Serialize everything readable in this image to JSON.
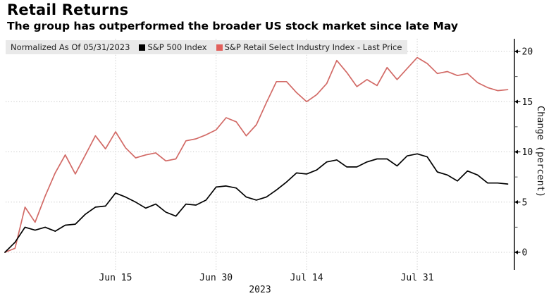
{
  "header": {
    "title": "Retail Returns",
    "subtitle": "The group has outperformed the broader US stock market since late May"
  },
  "legend": {
    "normalized_label": "Normalized As Of 05/31/2023",
    "items": [
      {
        "label": "S&P 500 Index",
        "color": "#000000"
      },
      {
        "label": "S&P Retail Select Industry Index - Last Price",
        "color": "#e2605c"
      }
    ]
  },
  "chart_data": {
    "type": "line",
    "title": "Retail Returns",
    "subtitle": "The group has outperformed the broader US stock market since late May",
    "ylabel": "Change (percent)",
    "yticks": [
      0,
      5,
      10,
      15,
      20
    ],
    "minor_yticks": [
      2.5,
      7.5,
      12.5,
      17.5
    ],
    "ylim": [
      -1.8,
      21.3
    ],
    "grid": "dotted",
    "legend_position": "top-left",
    "axis_side": "right",
    "x_axis_year_label": "2023",
    "x_tick_labels": [
      "Jun 15",
      "Jun 30",
      "Jul 14",
      "Jul 31"
    ],
    "x_tick_indices": [
      11,
      21,
      30,
      41
    ],
    "dates": [
      "05/31",
      "06/01",
      "06/02",
      "06/05",
      "06/06",
      "06/07",
      "06/08",
      "06/09",
      "06/12",
      "06/13",
      "06/14",
      "06/15",
      "06/16",
      "06/20",
      "06/21",
      "06/22",
      "06/23",
      "06/26",
      "06/27",
      "06/28",
      "06/29",
      "06/30",
      "07/03",
      "07/05",
      "07/06",
      "07/07",
      "07/10",
      "07/11",
      "07/12",
      "07/13",
      "07/14",
      "07/17",
      "07/18",
      "07/19",
      "07/20",
      "07/21",
      "07/24",
      "07/25",
      "07/26",
      "07/27",
      "07/28",
      "07/31",
      "08/01",
      "08/02",
      "08/03",
      "08/04",
      "08/07",
      "08/08",
      "08/09",
      "08/10",
      "08/11"
    ],
    "series": [
      {
        "name": "S&P 500 Index",
        "color": "#000000",
        "values": [
          0,
          1.0,
          2.5,
          2.2,
          2.5,
          2.1,
          2.7,
          2.8,
          3.8,
          4.5,
          4.6,
          5.9,
          5.5,
          5.0,
          4.4,
          4.8,
          4.0,
          3.6,
          4.8,
          4.7,
          5.2,
          6.5,
          6.6,
          6.4,
          5.5,
          5.2,
          5.5,
          6.2,
          7.0,
          7.9,
          7.8,
          8.2,
          9.0,
          9.2,
          8.5,
          8.5,
          9.0,
          9.3,
          9.3,
          8.6,
          9.6,
          9.8,
          9.5,
          8.0,
          7.7,
          7.1,
          8.1,
          7.7,
          6.9,
          6.9,
          6.8
        ]
      },
      {
        "name": "S&P Retail Select Industry Index - Last Price",
        "color": "#d26a66",
        "values": [
          0,
          0.4,
          4.5,
          3.0,
          5.6,
          7.9,
          9.7,
          7.8,
          9.7,
          11.6,
          10.3,
          12.0,
          10.4,
          9.4,
          9.7,
          9.9,
          9.1,
          9.3,
          11.1,
          11.3,
          11.7,
          12.2,
          13.4,
          13.0,
          11.6,
          12.7,
          14.9,
          17.0,
          17.0,
          15.9,
          15.0,
          15.7,
          16.8,
          19.1,
          17.9,
          16.5,
          17.2,
          16.6,
          18.4,
          17.2,
          18.3,
          19.4,
          18.8,
          17.8,
          18.0,
          17.6,
          17.8,
          16.9,
          16.4,
          16.1,
          16.2
        ]
      }
    ]
  }
}
